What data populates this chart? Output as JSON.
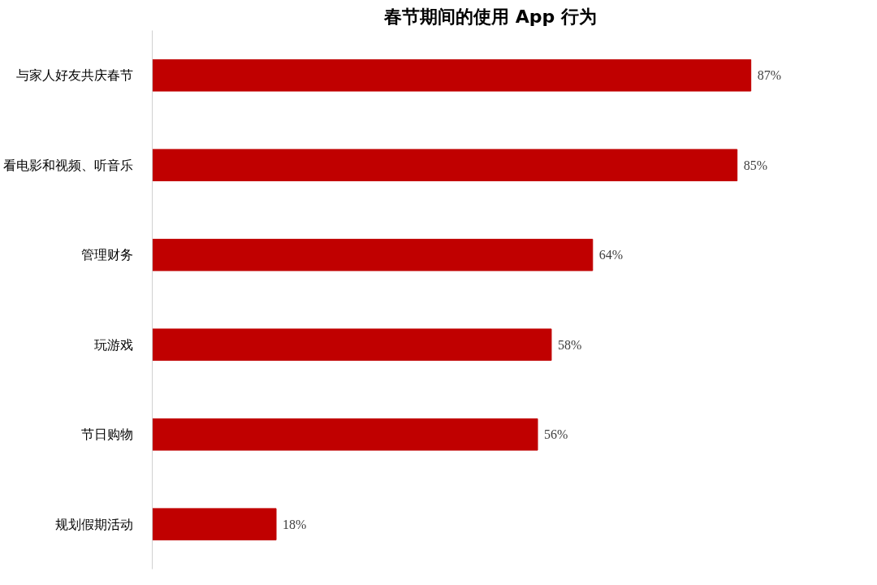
{
  "chart_data": {
    "type": "bar",
    "orientation": "horizontal",
    "title": "春节期间的使用 App 行为",
    "categories": [
      "与家人好友共庆春节",
      "看电影和视频、听音乐",
      "管理财务",
      "玩游戏",
      "节日购物",
      "规划假期活动"
    ],
    "values": [
      87,
      85,
      64,
      58,
      56,
      18
    ],
    "value_labels": [
      "87%",
      "85%",
      "64%",
      "58%",
      "56%",
      "18%"
    ],
    "color": "#c00000",
    "grid": false,
    "tick_labels": "y"
  }
}
